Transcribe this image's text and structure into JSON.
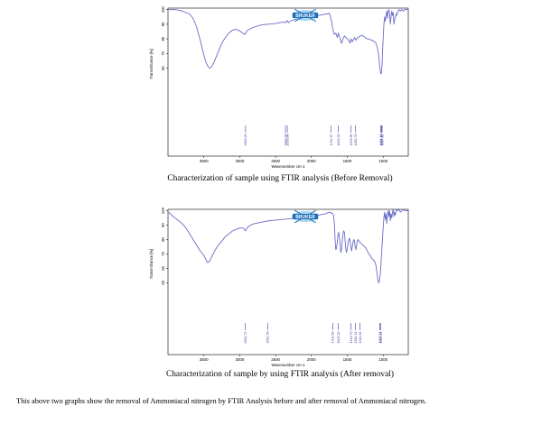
{
  "colors": {
    "spectrum": "#6b6bc8",
    "peak_marker": "#3d3da8",
    "logo": "#1b6fb8",
    "logo_light": "#7cc0ea"
  },
  "logo": {
    "text": "BRUKER",
    "icon": "bruker-logo-icon"
  },
  "chart_data": [
    {
      "type": "line",
      "title": "",
      "xlabel": "Wavenumber cm-1",
      "ylabel": "Transmittance [%]",
      "x_reversed": true,
      "xlim": [
        4000,
        650
      ],
      "ylim": [
        0,
        101
      ],
      "xticks": [
        "3500",
        "3000",
        "2500",
        "2000",
        "1500",
        "1000"
      ],
      "yticks": [
        "60",
        "70",
        "80",
        "90",
        "100"
      ],
      "grid": false,
      "series": [
        {
          "x": [
            3990,
            3900,
            3800,
            3700,
            3650,
            3600,
            3550,
            3500,
            3470,
            3440,
            3420,
            3400,
            3380,
            3350,
            3300,
            3250,
            3200,
            3150,
            3100,
            3050,
            3000,
            2960,
            2930,
            2900,
            2850,
            2800,
            2700,
            2600,
            2500,
            2450,
            2400,
            2360,
            2340,
            2320,
            2300,
            2250,
            2200,
            2100,
            2000,
            1900,
            1800,
            1750,
            1724,
            1700,
            1680,
            1660,
            1640,
            1625,
            1600,
            1580,
            1560,
            1540,
            1520,
            1500,
            1480,
            1460,
            1449,
            1430,
            1410,
            1395,
            1384,
            1370,
            1350,
            1320,
            1300,
            1280,
            1250,
            1220,
            1200,
            1180,
            1150,
            1120,
            1100,
            1080,
            1060,
            1050,
            1040,
            1032,
            1025,
            1015,
            1010,
            1000,
            990,
            980,
            970,
            960,
            950,
            940,
            930,
            920,
            910,
            900,
            890,
            880,
            870,
            860,
            850,
            840,
            830,
            820,
            810,
            800,
            780,
            760,
            740,
            720,
            700,
            680,
            660,
            650
          ],
          "y": [
            100,
            100,
            99,
            97,
            94,
            88,
            79,
            69,
            64,
            61,
            60,
            60.5,
            62,
            65,
            71,
            77,
            81,
            84,
            86,
            86.5,
            85.5,
            84,
            83,
            85.5,
            87,
            88,
            89.5,
            90,
            90.5,
            91,
            91.5,
            91,
            92.5,
            91,
            92,
            93,
            93.5,
            94.5,
            95,
            96,
            97,
            97.5,
            93,
            86,
            83,
            84,
            81,
            84,
            80,
            77,
            80,
            82,
            81,
            80,
            79,
            77,
            80,
            78,
            80,
            81,
            79,
            80,
            81,
            82,
            82.5,
            82,
            81,
            80,
            80,
            79.5,
            79,
            78,
            77,
            74,
            68,
            62,
            58,
            56,
            57,
            62,
            70,
            80,
            90,
            95,
            92,
            96,
            99,
            94,
            99,
            100,
            97,
            90,
            95,
            99,
            96,
            98,
            90,
            93,
            95,
            97,
            96,
            98,
            100,
            99,
            100,
            99,
            100,
            100,
            100,
            100
          ]
        },
        {
          "x": [
            3990,
            3950,
            3900,
            3850,
            3800,
            3750,
            3700,
            3650,
            3600,
            3550,
            3500,
            3470,
            3450,
            3420,
            3400,
            3380,
            3350,
            3300,
            3250,
            3200,
            3150,
            3100,
            3050,
            3000,
            2950,
            2920,
            2900,
            2850,
            2800,
            2700,
            2600,
            2500,
            2400,
            2300,
            2200,
            2100,
            2000,
            1900,
            1800,
            1750,
            1700,
            1690,
            1680,
            1670,
            1660,
            1650,
            1640,
            1630,
            1620,
            1610,
            1600,
            1590,
            1580,
            1570,
            1560,
            1550,
            1540,
            1530,
            1520,
            1510,
            1500,
            1490,
            1480,
            1470,
            1460,
            1450,
            1440,
            1430,
            1420,
            1410,
            1400,
            1390,
            1380,
            1370,
            1360,
            1350,
            1340,
            1320,
            1300,
            1280,
            1260,
            1240,
            1220,
            1200,
            1180,
            1160,
            1140,
            1120,
            1100,
            1090,
            1080,
            1070,
            1060,
            1050,
            1040,
            1030,
            1020,
            1010,
            1000,
            990,
            980,
            970,
            960,
            950,
            940,
            930,
            920,
            910,
            900,
            890,
            880,
            870,
            860,
            850,
            840,
            830,
            820,
            810,
            800,
            780,
            760,
            740,
            720,
            700,
            680,
            660,
            650
          ],
          "y": [
            99,
            97,
            95,
            93,
            91,
            88,
            84,
            80,
            76,
            72,
            69,
            66,
            64,
            65,
            67,
            69,
            72,
            76,
            79,
            82,
            84,
            86,
            87,
            88,
            88,
            86,
            88,
            90,
            91,
            92,
            93,
            93.5,
            94,
            94.5,
            95,
            95.5,
            96,
            97,
            98,
            99,
            98,
            96,
            91,
            80,
            73,
            74,
            78,
            83,
            85,
            82,
            76,
            71,
            74,
            79,
            84,
            86,
            85,
            79,
            73,
            71,
            74,
            77,
            80,
            81,
            79,
            75,
            72,
            75,
            78,
            80,
            79,
            75,
            73,
            76,
            79,
            80,
            79,
            78,
            77,
            76,
            75,
            74,
            72,
            70,
            69,
            67,
            66,
            65,
            62,
            58,
            54,
            51,
            50,
            52,
            56,
            63,
            72,
            80,
            88,
            95,
            99,
            94,
            98,
            91,
            97,
            100,
            96,
            100,
            93,
            98,
            95,
            99,
            101,
            96,
            99,
            97,
            100,
            101,
            100,
            101,
            99,
            100,
            101,
            100,
            100,
            100,
            100
          ]
        }
      ]
    }
  ],
  "charts": [
    {
      "ylabel": "Transmittance [%]",
      "xlabel": "Wavenumber cm-1",
      "xticks": [
        "3500",
        "3000",
        "2500",
        "2000",
        "1500",
        "1000"
      ],
      "yticks": [
        "60",
        "70",
        "80",
        "90",
        "100"
      ],
      "peaks": [
        {
          "x": 2918.25,
          "label": "2918.25"
        },
        {
          "x": 2362.09,
          "label": "2362.09"
        },
        {
          "x": 2335.88,
          "label": "2335.88"
        },
        {
          "x": 1724.57,
          "label": "1724.57"
        },
        {
          "x": 1623.28,
          "label": "1623.28"
        },
        {
          "x": 1449.95,
          "label": "1449.95"
        },
        {
          "x": 1383.78,
          "label": "1383.78"
        },
        {
          "x": 1032.19,
          "label": "1032.19"
        },
        {
          "x": 1024.14,
          "label": "1024.14"
        },
        {
          "x": 1014.8,
          "label": "1014.80"
        }
      ]
    },
    {
      "ylabel": "Transmittance [%]",
      "xlabel": "Wavenumber cm-1",
      "xticks": [
        "3500",
        "3000",
        "2500",
        "2000",
        "1500",
        "1000"
      ],
      "yticks": [
        "50",
        "60",
        "70",
        "80",
        "90",
        "100"
      ],
      "peaks": [
        {
          "x": 2921.74,
          "label": "2921.74"
        },
        {
          "x": 2610.78,
          "label": "2610.78"
        },
        {
          "x": 1702.95,
          "label": "1702.95"
        },
        {
          "x": 1623.52,
          "label": "1623.52"
        },
        {
          "x": 1449.75,
          "label": "1449.75"
        },
        {
          "x": 1384.34,
          "label": "1384.34"
        },
        {
          "x": 1321.61,
          "label": "1321.61"
        },
        {
          "x": 1034.42,
          "label": "1034.42"
        },
        {
          "x": 1045.94,
          "label": "1045.94"
        }
      ]
    }
  ],
  "captions": {
    "before": "Characterization of sample using FTIR analysis (Before Removal)",
    "after": "Characterization of sample by using FTIR analysis (After removal)"
  },
  "paragraph": "This above two graphs show the removal of Ammoniacal nitrogen by FTIR Analysis before and after removal of Ammoniacal nitrogen."
}
